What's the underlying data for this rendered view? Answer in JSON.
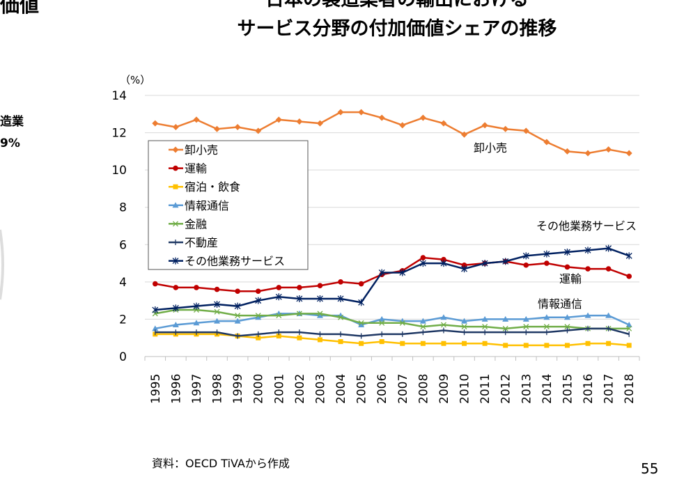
{
  "slide": {
    "title_line1": "日本の製造業者の輸出における",
    "title_line2": "サービス分野の付加価値シェアの推移",
    "left_title_fragment": "価値",
    "left_label_fragment": "造業",
    "left_value_fragment": "9%",
    "source": "資料：OECD TiVAから作成",
    "page_number": "55"
  },
  "chart_data": {
    "type": "line",
    "title": "日本の製造業者の輸出における サービス分野の付加価値シェアの推移",
    "ylabel": "（%）",
    "xlabel": "",
    "ylim": [
      0,
      14
    ],
    "yticks": [
      0,
      2,
      4,
      6,
      8,
      10,
      12,
      14
    ],
    "grid": true,
    "legend": "top-left",
    "categories": [
      "1995",
      "1996",
      "1997",
      "1998",
      "1999",
      "2000",
      "2001",
      "2002",
      "2003",
      "2004",
      "2005",
      "2006",
      "2007",
      "2008",
      "2009",
      "2010",
      "2011",
      "2012",
      "2013",
      "2014",
      "2015",
      "2016",
      "2017",
      "2018"
    ],
    "series": [
      {
        "name": "卸小売",
        "color": "#ED7D31",
        "marker": "diamond",
        "values": [
          12.5,
          12.3,
          12.7,
          12.2,
          12.3,
          12.1,
          12.7,
          12.6,
          12.5,
          13.1,
          13.1,
          12.8,
          12.4,
          12.8,
          12.5,
          11.9,
          12.4,
          12.2,
          12.1,
          11.5,
          11.0,
          10.9,
          11.1,
          10.9
        ]
      },
      {
        "name": "運輸",
        "color": "#C00000",
        "marker": "circle",
        "values": [
          3.9,
          3.7,
          3.7,
          3.6,
          3.5,
          3.5,
          3.7,
          3.7,
          3.8,
          4.0,
          3.9,
          4.4,
          4.6,
          5.3,
          5.2,
          4.9,
          5.0,
          5.1,
          4.9,
          5.0,
          4.8,
          4.7,
          4.7,
          4.3
        ]
      },
      {
        "name": "宿泊・飲食",
        "color": "#FFC000",
        "marker": "square",
        "values": [
          1.2,
          1.2,
          1.2,
          1.2,
          1.1,
          1.0,
          1.1,
          1.0,
          0.9,
          0.8,
          0.7,
          0.8,
          0.7,
          0.7,
          0.7,
          0.7,
          0.7,
          0.6,
          0.6,
          0.6,
          0.6,
          0.7,
          0.7,
          0.6
        ]
      },
      {
        "name": "情報通信",
        "color": "#5B9BD5",
        "marker": "triangle",
        "values": [
          1.5,
          1.7,
          1.8,
          1.9,
          1.9,
          2.1,
          2.3,
          2.3,
          2.2,
          2.2,
          1.7,
          2.0,
          1.9,
          1.9,
          2.1,
          1.9,
          2.0,
          2.0,
          2.0,
          2.1,
          2.1,
          2.2,
          2.2,
          1.7
        ]
      },
      {
        "name": "金融",
        "color": "#70AD47",
        "marker": "x",
        "values": [
          2.3,
          2.5,
          2.5,
          2.4,
          2.2,
          2.2,
          2.2,
          2.3,
          2.3,
          2.1,
          1.8,
          1.8,
          1.8,
          1.6,
          1.7,
          1.6,
          1.6,
          1.5,
          1.6,
          1.6,
          1.6,
          1.5,
          1.5,
          1.5
        ]
      },
      {
        "name": "不動産",
        "color": "#1F3864",
        "marker": "plus",
        "values": [
          1.3,
          1.3,
          1.3,
          1.3,
          1.1,
          1.2,
          1.3,
          1.3,
          1.2,
          1.2,
          1.1,
          1.2,
          1.2,
          1.3,
          1.4,
          1.3,
          1.3,
          1.3,
          1.3,
          1.3,
          1.4,
          1.5,
          1.5,
          1.2
        ]
      },
      {
        "name": "その他業務サービス",
        "color": "#002060",
        "marker": "star",
        "values": [
          2.5,
          2.6,
          2.7,
          2.8,
          2.7,
          3.0,
          3.2,
          3.1,
          3.1,
          3.1,
          2.9,
          4.5,
          4.5,
          5.0,
          5.0,
          4.7,
          5.0,
          5.1,
          5.4,
          5.5,
          5.6,
          5.7,
          5.8,
          5.4
        ]
      }
    ],
    "annotations": [
      {
        "text": "卸小売",
        "series": "卸小売"
      },
      {
        "text": "その他業務サービス",
        "series": "その他業務サービス"
      },
      {
        "text": "運輸",
        "series": "運輸"
      },
      {
        "text": "情報通信",
        "series": "情報通信"
      }
    ]
  }
}
